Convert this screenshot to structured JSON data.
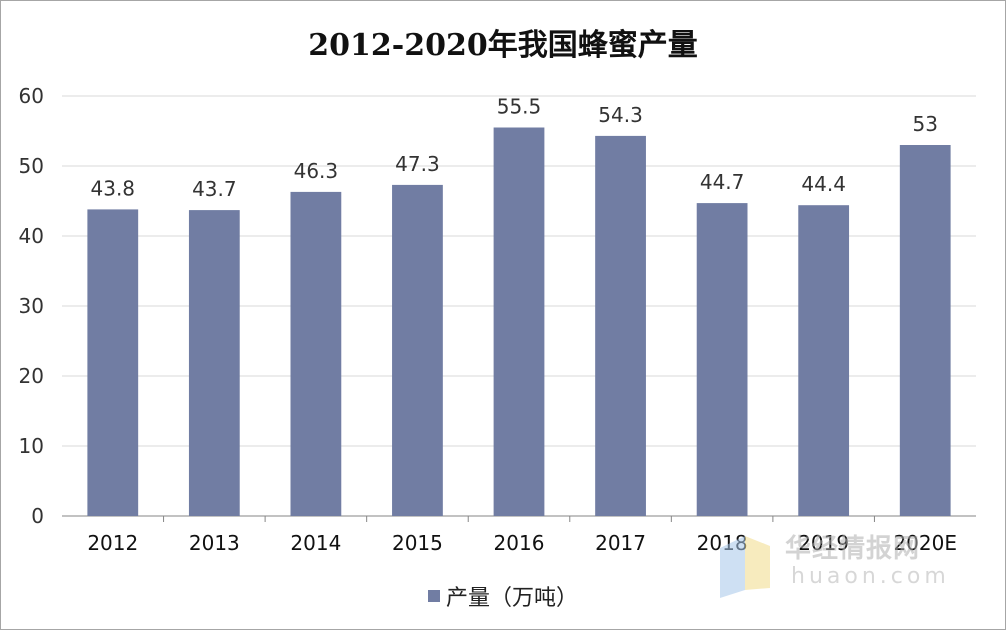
{
  "chart_data": {
    "type": "bar",
    "title": "2012-2020年我国蜂蜜产量",
    "categories": [
      "2012",
      "2013",
      "2014",
      "2015",
      "2016",
      "2017",
      "2018",
      "2019",
      "2020E"
    ],
    "series": [
      {
        "name": "产量（万吨）",
        "values": [
          43.8,
          43.7,
          46.3,
          47.3,
          55.5,
          54.3,
          44.7,
          44.4,
          53
        ]
      }
    ],
    "data_labels": [
      "43.8",
      "43.7",
      "46.3",
      "47.3",
      "55.5",
      "54.3",
      "44.7",
      "44.4",
      "53"
    ],
    "ylim": [
      0,
      60
    ],
    "yticks": [
      0,
      10,
      20,
      30,
      40,
      50,
      60
    ],
    "grid": true,
    "legend_position": "bottom",
    "bar_color": "#717da3"
  },
  "watermark": {
    "text": "华经情报网",
    "url": "huaon.com"
  }
}
